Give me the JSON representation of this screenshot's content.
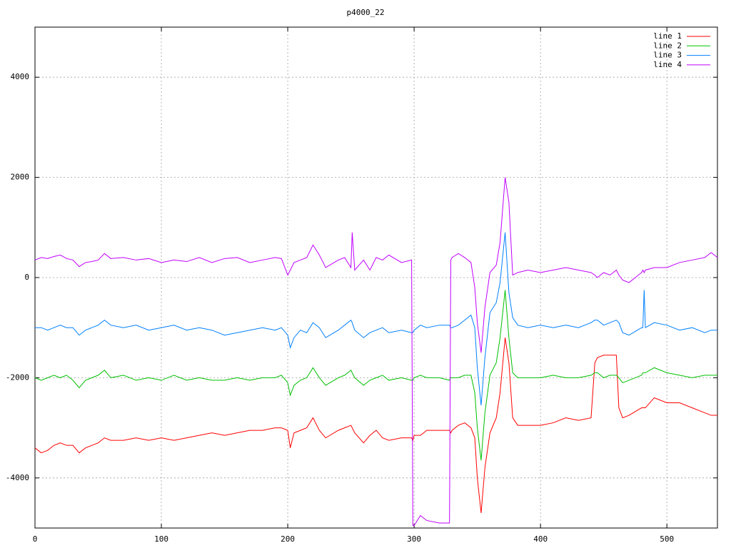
{
  "chart_data": {
    "type": "line",
    "title": "p4000_22",
    "x": [
      0,
      5,
      10,
      15,
      20,
      25,
      30,
      35,
      40,
      45,
      50,
      55,
      60,
      70,
      80,
      90,
      100,
      110,
      120,
      130,
      140,
      150,
      160,
      170,
      180,
      190,
      195,
      200,
      202,
      205,
      210,
      215,
      220,
      225,
      230,
      240,
      245,
      250,
      251,
      253,
      260,
      265,
      270,
      275,
      280,
      290,
      298,
      299,
      300,
      305,
      310,
      320,
      328,
      329,
      330,
      335,
      340,
      345,
      348,
      350,
      353,
      356,
      360,
      365,
      368,
      372,
      375,
      378,
      382,
      390,
      400,
      410,
      420,
      430,
      440,
      443,
      445,
      450,
      455,
      460,
      462,
      465,
      470,
      480,
      481,
      482,
      483,
      490,
      500,
      510,
      520,
      530,
      535,
      540
    ],
    "series": [
      {
        "name": "line 1",
        "color": "#ff0000",
        "values": [
          -3400,
          -3500,
          -3450,
          -3350,
          -3300,
          -3350,
          -3350,
          -3500,
          -3400,
          -3350,
          -3300,
          -3200,
          -3250,
          -3250,
          -3200,
          -3250,
          -3200,
          -3250,
          -3200,
          -3150,
          -3100,
          -3150,
          -3100,
          -3050,
          -3050,
          -3000,
          -3000,
          -3050,
          -3400,
          -3100,
          -3050,
          -3000,
          -2800,
          -3050,
          -3200,
          -3050,
          -3000,
          -2950,
          -3000,
          -3100,
          -3300,
          -3150,
          -3050,
          -3200,
          -3250,
          -3200,
          -3200,
          -3250,
          -3150,
          -3150,
          -3050,
          -3050,
          -3050,
          -3100,
          -3050,
          -2950,
          -2900,
          -3000,
          -3200,
          -4000,
          -4700,
          -3800,
          -3100,
          -2800,
          -2300,
          -1200,
          -1700,
          -2800,
          -2950,
          -2950,
          -2950,
          -2900,
          -2800,
          -2850,
          -2800,
          -1700,
          -1600,
          -1550,
          -1550,
          -1550,
          -2600,
          -2800,
          -2750,
          -2600,
          -2600,
          -2600,
          -2600,
          -2400,
          -2500,
          -2500,
          -2600,
          -2700,
          -2750,
          -2750
        ]
      },
      {
        "name": "line 2",
        "color": "#00c000",
        "values": [
          -2000,
          -2050,
          -2000,
          -1950,
          -2000,
          -1950,
          -2050,
          -2200,
          -2050,
          -2000,
          -1950,
          -1850,
          -2000,
          -1950,
          -2050,
          -2000,
          -2050,
          -1950,
          -2050,
          -2000,
          -2050,
          -2050,
          -2000,
          -2050,
          -2000,
          -2000,
          -1950,
          -2100,
          -2350,
          -2150,
          -2050,
          -2000,
          -1800,
          -2000,
          -2150,
          -2000,
          -1950,
          -1850,
          -1900,
          -2000,
          -2150,
          -2050,
          -2000,
          -1950,
          -2050,
          -2000,
          -2050,
          -2050,
          -2000,
          -1950,
          -2000,
          -2000,
          -2050,
          -2000,
          -2000,
          -2000,
          -1950,
          -1950,
          -2300,
          -3000,
          -3650,
          -2700,
          -1950,
          -1700,
          -1200,
          -250,
          -1200,
          -1900,
          -2000,
          -2000,
          -2000,
          -1950,
          -2000,
          -2000,
          -1950,
          -1900,
          -1900,
          -2000,
          -1950,
          -1950,
          -2000,
          -2100,
          -2050,
          -1950,
          -1900,
          -1900,
          -1900,
          -1800,
          -1900,
          -1950,
          -2000,
          -1950,
          -1950,
          -1950
        ]
      },
      {
        "name": "line 3",
        "color": "#0080ff",
        "values": [
          -1000,
          -1000,
          -1050,
          -1000,
          -950,
          -1000,
          -1000,
          -1150,
          -1050,
          -1000,
          -950,
          -850,
          -950,
          -1000,
          -950,
          -1050,
          -1000,
          -950,
          -1050,
          -1000,
          -1050,
          -1150,
          -1100,
          -1050,
          -1000,
          -1050,
          -1000,
          -1150,
          -1400,
          -1200,
          -1050,
          -1100,
          -900,
          -1000,
          -1200,
          -1050,
          -950,
          -850,
          -900,
          -1050,
          -1200,
          -1100,
          -1050,
          -1000,
          -1100,
          -1050,
          -1100,
          -1100,
          -1050,
          -950,
          -1000,
          -950,
          -950,
          -1000,
          -1000,
          -950,
          -850,
          -750,
          -1000,
          -1800,
          -2550,
          -1600,
          -700,
          -500,
          -100,
          900,
          -300,
          -800,
          -950,
          -1000,
          -950,
          -1000,
          -950,
          -1000,
          -900,
          -850,
          -850,
          -950,
          -900,
          -850,
          -900,
          -1100,
          -1150,
          -1000,
          -1000,
          -250,
          -1000,
          -900,
          -950,
          -1050,
          -1000,
          -1100,
          -1050,
          -1050
        ]
      },
      {
        "name": "line 4",
        "color": "#c000ff",
        "values": [
          350,
          400,
          380,
          420,
          450,
          380,
          350,
          220,
          300,
          320,
          350,
          480,
          380,
          400,
          350,
          380,
          300,
          350,
          320,
          400,
          300,
          380,
          400,
          300,
          350,
          400,
          380,
          50,
          150,
          300,
          350,
          400,
          650,
          450,
          200,
          350,
          400,
          200,
          900,
          150,
          350,
          150,
          400,
          350,
          450,
          300,
          350,
          -4950,
          -4950,
          -4750,
          -4850,
          -4900,
          -4900,
          350,
          400,
          480,
          400,
          300,
          -200,
          -900,
          -1500,
          -600,
          100,
          250,
          700,
          2000,
          1500,
          50,
          100,
          150,
          100,
          150,
          200,
          150,
          100,
          50,
          0,
          100,
          50,
          150,
          50,
          -50,
          -100,
          100,
          150,
          100,
          150,
          200,
          200,
          300,
          350,
          400,
          500,
          400
        ]
      }
    ],
    "xlim": [
      0,
      540
    ],
    "ylim": [
      -5000,
      5000
    ],
    "xticks": [
      0,
      100,
      200,
      300,
      400,
      500
    ],
    "yticks": [
      -4000,
      -2000,
      0,
      2000,
      4000
    ],
    "grid": true,
    "legend": "top-right"
  }
}
